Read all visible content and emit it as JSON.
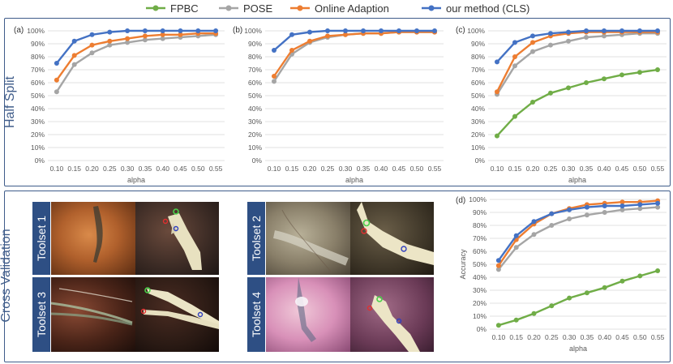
{
  "legend": [
    {
      "name": "FPBC",
      "color": "#70ad47"
    },
    {
      "name": "POSE",
      "color": "#a5a5a5"
    },
    {
      "name": "Online Adaption",
      "color": "#ed7d31"
    },
    {
      "name": "our method (CLS)",
      "color": "#4472c4"
    }
  ],
  "section_labels": {
    "top": "Half Split",
    "bottom": "Cross Validation"
  },
  "toolsets": [
    "Toolset 1",
    "Toolset 2",
    "Toolset 3",
    "Toolset 4"
  ],
  "chart_data": [
    {
      "type": "line",
      "panel": "(a)",
      "xlabel": "alpha",
      "ylabel": "",
      "x": [
        "0.10",
        "0.15",
        "0.20",
        "0.25",
        "0.30",
        "0.35",
        "0.40",
        "0.45",
        "0.50",
        "0.55"
      ],
      "yticks": [
        "0%",
        "10%",
        "20%",
        "30%",
        "40%",
        "50%",
        "60%",
        "70%",
        "80%",
        "90%",
        "100%"
      ],
      "ylim": [
        0,
        100
      ],
      "grid": true,
      "series": [
        {
          "name": "POSE",
          "color": "#a5a5a5",
          "values": [
            53,
            74,
            83,
            89,
            91,
            93,
            94,
            95,
            96,
            97
          ]
        },
        {
          "name": "Online Adaption",
          "color": "#ed7d31",
          "values": [
            62,
            81,
            89,
            92,
            94,
            96,
            97,
            97,
            98,
            98
          ]
        },
        {
          "name": "our method (CLS)",
          "color": "#4472c4",
          "values": [
            75,
            92,
            97,
            99,
            100,
            100,
            100,
            100,
            100,
            100
          ]
        }
      ]
    },
    {
      "type": "line",
      "panel": "(b)",
      "xlabel": "alpha",
      "ylabel": "",
      "x": [
        "0.10",
        "0.15",
        "0.20",
        "0.25",
        "0.30",
        "0.35",
        "0.40",
        "0.45",
        "0.50",
        "0.55"
      ],
      "yticks": [
        "0%",
        "10%",
        "20%",
        "30%",
        "40%",
        "50%",
        "60%",
        "70%",
        "80%",
        "90%",
        "100%"
      ],
      "ylim": [
        0,
        100
      ],
      "grid": true,
      "series": [
        {
          "name": "POSE",
          "color": "#a5a5a5",
          "values": [
            61,
            82,
            91,
            95,
            97,
            98,
            98,
            99,
            99,
            99
          ]
        },
        {
          "name": "Online Adaption",
          "color": "#ed7d31",
          "values": [
            65,
            85,
            92,
            96,
            97,
            98,
            98,
            99,
            99,
            99
          ]
        },
        {
          "name": "our method (CLS)",
          "color": "#4472c4",
          "values": [
            85,
            97,
            99,
            100,
            100,
            100,
            100,
            100,
            100,
            100
          ]
        }
      ]
    },
    {
      "type": "line",
      "panel": "(c)",
      "xlabel": "alpha",
      "ylabel": "",
      "x": [
        "0.10",
        "0.15",
        "0.20",
        "0.25",
        "0.30",
        "0.35",
        "0.40",
        "0.45",
        "0.50",
        "0.55"
      ],
      "yticks": [
        "0%",
        "10%",
        "20%",
        "30%",
        "40%",
        "50%",
        "60%",
        "70%",
        "80%",
        "90%",
        "100%"
      ],
      "ylim": [
        0,
        100
      ],
      "grid": true,
      "series": [
        {
          "name": "FPBC",
          "color": "#70ad47",
          "values": [
            19,
            34,
            45,
            52,
            56,
            60,
            63,
            66,
            68,
            70
          ]
        },
        {
          "name": "POSE",
          "color": "#a5a5a5",
          "values": [
            51,
            73,
            84,
            89,
            92,
            95,
            96,
            97,
            98,
            98
          ]
        },
        {
          "name": "Online Adaption",
          "color": "#ed7d31",
          "values": [
            53,
            80,
            91,
            96,
            98,
            99,
            99,
            99,
            99,
            99
          ]
        },
        {
          "name": "our method (CLS)",
          "color": "#4472c4",
          "values": [
            76,
            91,
            96,
            98,
            99,
            100,
            100,
            100,
            100,
            100
          ]
        }
      ]
    },
    {
      "type": "line",
      "panel": "(d)",
      "xlabel": "alpha",
      "ylabel": "Accuracy",
      "x": [
        "0.10",
        "0.15",
        "0.20",
        "0.25",
        "0.30",
        "0.35",
        "0.40",
        "0.45",
        "0.50",
        "0.55"
      ],
      "yticks": [
        "0%",
        "10%",
        "20%",
        "30%",
        "40%",
        "50%",
        "60%",
        "70%",
        "80%",
        "90%",
        "100%"
      ],
      "ylim": [
        0,
        100
      ],
      "grid": true,
      "series": [
        {
          "name": "FPBC",
          "color": "#70ad47",
          "values": [
            3,
            7,
            12,
            18,
            24,
            28,
            32,
            37,
            41,
            45
          ]
        },
        {
          "name": "POSE",
          "color": "#a5a5a5",
          "values": [
            46,
            63,
            73,
            80,
            85,
            88,
            90,
            92,
            93,
            94
          ]
        },
        {
          "name": "Online Adaption",
          "color": "#ed7d31",
          "values": [
            49,
            69,
            81,
            89,
            93,
            96,
            97,
            98,
            98,
            99
          ]
        },
        {
          "name": "our method (CLS)",
          "color": "#4472c4",
          "values": [
            53,
            72,
            83,
            89,
            92,
            94,
            95,
            95,
            96,
            97
          ]
        }
      ]
    }
  ]
}
